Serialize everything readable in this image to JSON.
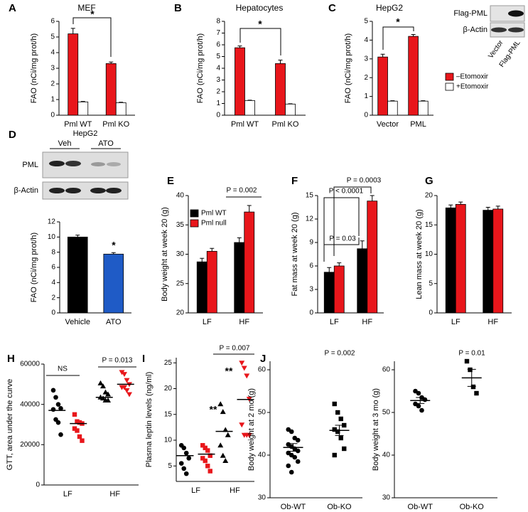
{
  "chart_data": [
    {
      "type": "bar",
      "panel": "A",
      "title": "MEF",
      "ylabel": "FAO (nCi/mg prot/h)",
      "categories": [
        "Pml WT",
        "Pml KO"
      ],
      "series": [
        {
          "color": "#e8161b",
          "values": [
            5.2,
            3.3
          ],
          "errors": [
            0.35,
            0.1
          ]
        },
        {
          "color": "#ffffff",
          "values": [
            0.85,
            0.8
          ],
          "errors": [
            0.03,
            0.03
          ]
        }
      ],
      "ylim": [
        0,
        6
      ],
      "yticks": [
        0,
        1,
        2,
        3,
        4,
        5,
        6
      ],
      "annotations": [
        {
          "text": "*"
        }
      ]
    },
    {
      "type": "bar",
      "panel": "B",
      "title": "Hepatocytes",
      "ylabel": "FAO (nCi/mg prot/h)",
      "categories": [
        "Pml WT",
        "Pml KO"
      ],
      "series": [
        {
          "color": "#e8161b",
          "values": [
            5.75,
            4.4
          ],
          "errors": [
            0.15,
            0.3
          ]
        },
        {
          "color": "#ffffff",
          "values": [
            1.25,
            0.95
          ],
          "errors": [
            0.03,
            0.03
          ]
        }
      ],
      "ylim": [
        0,
        8
      ],
      "yticks": [
        0,
        1,
        2,
        3,
        4,
        5,
        6,
        7,
        8
      ],
      "annotations": [
        {
          "text": "*"
        }
      ]
    },
    {
      "type": "bar",
      "panel": "C",
      "title": "HepG2",
      "ylabel": "FAO (nCi/mg prot/h)",
      "categories": [
        "Vector",
        "PML"
      ],
      "series": [
        {
          "name": "–Etomoxir",
          "color": "#e8161b",
          "values": [
            3.1,
            4.2
          ],
          "errors": [
            0.15,
            0.1
          ]
        },
        {
          "name": "+Etomoxir",
          "color": "#ffffff",
          "values": [
            0.75,
            0.75
          ],
          "errors": [
            0.02,
            0.02
          ]
        }
      ],
      "ylim": [
        0,
        5
      ],
      "yticks": [
        0,
        1,
        2,
        3,
        4,
        5
      ],
      "legend": true,
      "annotations": [
        {
          "text": "*"
        }
      ],
      "blot": {
        "rows": [
          "Flag-PML",
          "β-Actin"
        ],
        "lanes": [
          "Vector",
          "Flag-PML"
        ]
      }
    },
    {
      "type": "bar",
      "panel": "D",
      "ylabel": "FAO (nCi/mg prot/h)",
      "categories": [
        "Vehicle",
        "ATO"
      ],
      "series": [
        {
          "colors": [
            "#000000",
            "#1f5bc6"
          ],
          "values": [
            10.0,
            7.75
          ],
          "errors": [
            0.25,
            0.2
          ]
        }
      ],
      "ylim": [
        0,
        12
      ],
      "yticks": [
        0,
        2,
        4,
        6,
        8,
        10,
        12
      ],
      "annotations": [
        {
          "text": "*"
        }
      ],
      "blot": {
        "title": "HepG2",
        "groups": [
          "Veh",
          "ATO"
        ],
        "rows": [
          "PML",
          "β-Actin"
        ]
      }
    },
    {
      "type": "bar",
      "panel": "E",
      "ylabel": "Body weight at week 20 (g)",
      "categories": [
        "LF",
        "HF"
      ],
      "series": [
        {
          "name": "Pml WT",
          "color": "#000000",
          "values": [
            28.7,
            32.0
          ],
          "errors": [
            0.6,
            0.8
          ]
        },
        {
          "name": "Pml null",
          "color": "#e8161b",
          "values": [
            30.5,
            37.2
          ],
          "errors": [
            0.5,
            1.1
          ]
        }
      ],
      "ylim": [
        20,
        40
      ],
      "yticks": [
        20,
        25,
        30,
        35,
        40
      ],
      "legend": true,
      "annotations": [
        {
          "text": "P = 0.002"
        }
      ]
    },
    {
      "type": "bar",
      "panel": "F",
      "ylabel": "Fat mass at week 20 (g)",
      "categories": [
        "LF",
        "HF"
      ],
      "series": [
        {
          "color": "#000000",
          "values": [
            5.2,
            8.2
          ],
          "errors": [
            0.6,
            1.0
          ]
        },
        {
          "color": "#e8161b",
          "values": [
            6.0,
            14.3
          ],
          "errors": [
            0.4,
            0.7
          ]
        }
      ],
      "ylim": [
        0,
        15
      ],
      "yticks": [
        0,
        3,
        6,
        9,
        12,
        15
      ],
      "annotations": [
        {
          "text": "P = 0.0003"
        },
        {
          "text": "P < 0.0001"
        },
        {
          "text": "P = 0.03"
        }
      ]
    },
    {
      "type": "bar",
      "panel": "G",
      "ylabel": "Lean mass at week 20 (g)",
      "categories": [
        "LF",
        "HF"
      ],
      "series": [
        {
          "color": "#000000",
          "values": [
            17.9,
            17.5
          ],
          "errors": [
            0.5,
            0.5
          ]
        },
        {
          "color": "#e8161b",
          "values": [
            18.5,
            17.7
          ],
          "errors": [
            0.4,
            0.5
          ]
        }
      ],
      "ylim": [
        0,
        20
      ],
      "yticks": [
        0,
        5,
        10,
        15,
        20
      ]
    },
    {
      "type": "dot",
      "panel": "H",
      "ylabel": "GTT, area under the curve",
      "categories": [
        "LF",
        "HF"
      ],
      "series": [
        {
          "color": "#000000",
          "markers": [
            "circle",
            "triangle"
          ],
          "values": [
            [
              47000,
              43500,
              40000,
              38000,
              37500,
              32500,
              31000,
              25000
            ],
            [
              50500,
              49000,
              46000,
              45000,
              43500,
              43000,
              42000,
              42000
            ]
          ],
          "means": [
            37000,
            43500
          ]
        },
        {
          "color": "#e8161b",
          "markers": [
            "square",
            "triangle-down"
          ],
          "values": [
            [
              35000,
              31500,
              31000,
              30500,
              28000,
              27000,
              24000,
              22000
            ],
            [
              56000,
              55000,
              52000,
              50000,
              48500,
              48500,
              47000,
              45000
            ]
          ],
          "means": [
            30500,
            50000
          ]
        }
      ],
      "ylim": [
        0,
        60000
      ],
      "yticks": [
        0,
        20000,
        40000,
        60000
      ],
      "annotations": [
        {
          "text": "NS"
        },
        {
          "text": "P = 0.013"
        }
      ]
    },
    {
      "type": "dot",
      "panel": "I",
      "ylabel": "Plasma leptin levels (ng/ml)",
      "categories": [
        "LF",
        "HF"
      ],
      "series": [
        {
          "color": "#000000",
          "markers": [
            "circle",
            "triangle"
          ],
          "values": [
            [
              9,
              8.5,
              7.5,
              6.5,
              5.5,
              4.5,
              3.5
            ],
            [
              17,
              15.5,
              12,
              11,
              9,
              7,
              6
            ]
          ],
          "means": [
            7,
            11.7
          ]
        },
        {
          "color": "#e8161b",
          "markers": [
            "square",
            "triangle-down"
          ],
          "values": [
            [
              9,
              8.5,
              8,
              7,
              6.5,
              6,
              5,
              4
            ],
            [
              25,
              24,
              22.5,
              18,
              13,
              11,
              11,
              11
            ]
          ],
          "means": [
            7.3,
            17.9
          ]
        }
      ],
      "ylim": [
        2,
        26
      ],
      "yticks": [
        5,
        10,
        15,
        20,
        25
      ],
      "annotations": [
        {
          "text": "P = 0.007"
        },
        {
          "text": "**"
        },
        {
          "text": "**",
          "color": "#e8161b"
        }
      ]
    },
    {
      "type": "dot",
      "panel": "J",
      "ylabel": "Body weight at 2 mo (g)",
      "categories": [
        "Ob-WT",
        "Ob-KO"
      ],
      "series": [
        {
          "color": "#000000",
          "markers": [
            "circle",
            "square"
          ],
          "values": [
            [
              46,
              45.5,
              44,
              43.5,
              42.5,
              42,
              41.5,
              41,
              40.5,
              40,
              39.5,
              38.5,
              37.5,
              36
            ],
            [
              52,
              50,
              48.5,
              47,
              46,
              45.5,
              44,
              41.5,
              40
            ]
          ],
          "means": [
            41.8,
            45.8
          ],
          "errors": [
            0.9,
            1.2
          ]
        }
      ],
      "ylim": [
        30,
        62
      ],
      "yticks": [
        30,
        40,
        50,
        60
      ],
      "annotations": [
        {
          "text": "P = 0.002"
        }
      ]
    },
    {
      "type": "dot",
      "ylabel": "Body weight at 3 mo (g)",
      "categories": [
        "Ob-WT",
        "Ob-KO"
      ],
      "series": [
        {
          "color": "#000000",
          "markers": [
            "circle",
            "square"
          ],
          "values": [
            [
              55,
              54.5,
              53.5,
              53,
              52,
              51.5,
              50.5
            ],
            [
              62,
              60,
              56,
              54.5
            ]
          ],
          "means": [
            52.8,
            58.1
          ],
          "errors": [
            0.7,
            2.0
          ]
        }
      ],
      "ylim": [
        30,
        62
      ],
      "yticks": [
        30,
        40,
        50,
        60
      ],
      "annotations": [
        {
          "text": "P = 0.01"
        }
      ]
    }
  ]
}
